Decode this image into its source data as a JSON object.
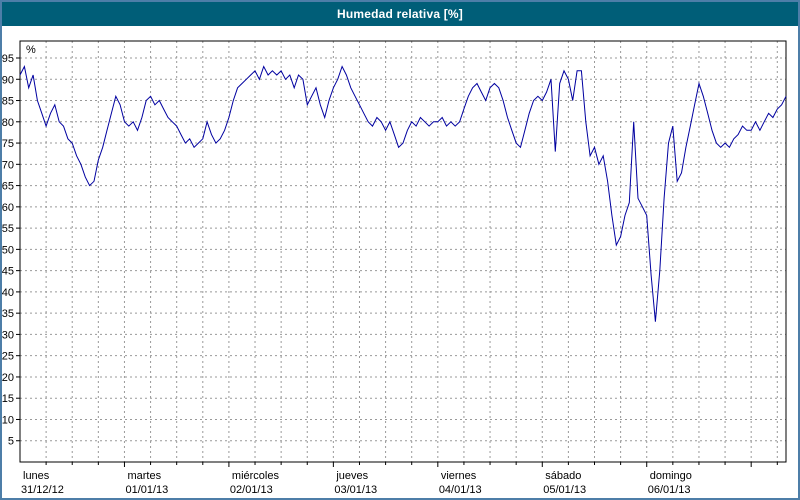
{
  "window": {
    "title": "Humedad relativa [%]"
  },
  "colors": {
    "title_bar_bg": "#005e78",
    "title_text": "#ffffff",
    "frame_border": "#4d7ea8",
    "plot_bg": "#ffffff",
    "line": "#0000a0",
    "grid": "#999999",
    "axis": "#000000",
    "label_text": "#000000"
  },
  "chart_data": {
    "type": "line",
    "title": "Humedad relativa [%]",
    "ylabel": "%",
    "legend": "none",
    "grid": "dashed",
    "series": [
      {
        "name": "Humedad relativa",
        "color": "#0000a0",
        "x_start_hour": 0,
        "x_step_hours": 1,
        "values": [
          91,
          93,
          88,
          91,
          85,
          82,
          79,
          82,
          84,
          80,
          79,
          76,
          75,
          72,
          70,
          67,
          65,
          66,
          71,
          74,
          78,
          82,
          86,
          84,
          80,
          79,
          80,
          78,
          81,
          85,
          86,
          84,
          85,
          83,
          81,
          80,
          79,
          77,
          75,
          76,
          74,
          75,
          76,
          80,
          77,
          75,
          76,
          78,
          81,
          85,
          88,
          89,
          90,
          91,
          92,
          90,
          93,
          91,
          92,
          91,
          92,
          90,
          91,
          88,
          91,
          90,
          84,
          86,
          88,
          84,
          81,
          85,
          88,
          90,
          93,
          91,
          88,
          86,
          84,
          82,
          80,
          79,
          81,
          80,
          78,
          80,
          77,
          74,
          75,
          78,
          80,
          79,
          81,
          80,
          79,
          80,
          80,
          81,
          79,
          80,
          79,
          80,
          83,
          86,
          88,
          89,
          87,
          85,
          88,
          89,
          88,
          85,
          81,
          78,
          75,
          74,
          78,
          82,
          85,
          86,
          85,
          87,
          90,
          73,
          89,
          92,
          90,
          85,
          92,
          92,
          80,
          72,
          74,
          70,
          72,
          66,
          58,
          51,
          53,
          58,
          61,
          80,
          62,
          60,
          58,
          44,
          33,
          45,
          62,
          75,
          79,
          66,
          68,
          74,
          79,
          84,
          89,
          86,
          82,
          78,
          75,
          74,
          75,
          74,
          76,
          77,
          79,
          78,
          78,
          80,
          78,
          80,
          82,
          81,
          83,
          84,
          86
        ]
      }
    ],
    "x_axis": {
      "unit": "hours",
      "total_hours": 176,
      "day_tick_interval_hours": 24,
      "minor_grid_interval_hours": 6,
      "days": [
        {
          "name": "lunes",
          "date": "31/12/12",
          "start_hour": 0
        },
        {
          "name": "martes",
          "date": "01/01/13",
          "start_hour": 24
        },
        {
          "name": "miércoles",
          "date": "02/01/13",
          "start_hour": 48
        },
        {
          "name": "jueves",
          "date": "03/01/13",
          "start_hour": 72
        },
        {
          "name": "viernes",
          "date": "04/01/13",
          "start_hour": 96
        },
        {
          "name": "sábado",
          "date": "05/01/13",
          "start_hour": 120
        },
        {
          "name": "domingo",
          "date": "06/01/13",
          "start_hour": 144
        }
      ]
    },
    "y_axis": {
      "unit_label": "%",
      "min": 0,
      "max": 99,
      "tick_min": 5,
      "tick_max": 95,
      "tick_step": 5
    }
  }
}
